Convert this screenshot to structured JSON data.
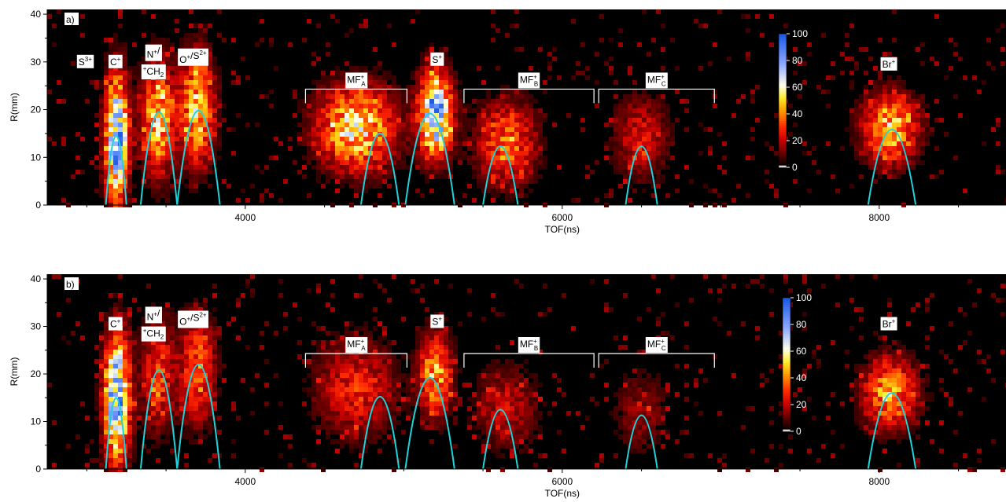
{
  "chart_data": [
    {
      "type": "heatmap",
      "panel_label": "a)",
      "xlabel": "TOF(ns)",
      "ylabel": "R(mm)",
      "xlim": [
        2750,
        8800
      ],
      "ylim": [
        0,
        41
      ],
      "x_ticks": [
        4000,
        6000,
        8000
      ],
      "y_ticks": [
        0,
        10,
        20,
        30,
        40
      ],
      "colorbar": {
        "min": 0,
        "max": 100,
        "ticks": [
          0,
          20,
          40,
          60,
          80,
          100
        ]
      },
      "blobs": [
        {
          "x": 3190,
          "sx": 50,
          "r": 14,
          "sr": 9,
          "peak": 95
        },
        {
          "x": 3450,
          "sx": 70,
          "r": 18,
          "sr": 8,
          "peak": 55
        },
        {
          "x": 3700,
          "sx": 75,
          "r": 20,
          "sr": 8,
          "peak": 55
        },
        {
          "x": 4700,
          "sx": 170,
          "r": 16,
          "sr": 6,
          "peak": 60
        },
        {
          "x": 5200,
          "sx": 70,
          "r": 19,
          "sr": 6,
          "peak": 92
        },
        {
          "x": 5650,
          "sx": 130,
          "r": 13,
          "sr": 6,
          "peak": 40
        },
        {
          "x": 6500,
          "sx": 120,
          "r": 14,
          "sr": 6,
          "peak": 25
        },
        {
          "x": 8070,
          "sx": 120,
          "r": 16,
          "sr": 5,
          "peak": 55
        }
      ],
      "arcs": [
        {
          "x0": 3120,
          "x1": 3250,
          "peak": 14.5
        },
        {
          "x0": 3340,
          "x1": 3570,
          "peak": 19.5
        },
        {
          "x0": 3570,
          "x1": 3840,
          "peak": 19.8
        },
        {
          "x0": 4730,
          "x1": 4970,
          "peak": 15
        },
        {
          "x0": 5010,
          "x1": 5320,
          "peak": 19.2
        },
        {
          "x0": 5500,
          "x1": 5720,
          "peak": 12.3
        },
        {
          "x0": 6400,
          "x1": 6600,
          "peak": 12.3
        },
        {
          "x0": 7930,
          "x1": 8230,
          "peak": 15.8
        }
      ],
      "ion_labels": [
        {
          "x": 2990,
          "y": 30,
          "text": "S",
          "sup": "3+",
          "sub": ""
        },
        {
          "x": 3180,
          "y": 30,
          "text": "C",
          "sup": "+",
          "sub": ""
        },
        {
          "x": 3420,
          "y": 31.5,
          "text": "N",
          "sup": "+",
          "sub": "",
          "suffix": "/"
        },
        {
          "x": 3420,
          "y": 28,
          "text": "CH",
          "sup": "",
          "sub": "2",
          "pre_sup": "+"
        },
        {
          "x": 3670,
          "y": 30.5,
          "text": "O",
          "sup": "+",
          "sub": "",
          "suffix": "/S",
          "suffix_sup": "2+"
        },
        {
          "x": 5210,
          "y": 30.5,
          "text": "S",
          "sup": "+",
          "sub": ""
        },
        {
          "x": 8060,
          "y": 29.5,
          "text": "Br",
          "sup": "+",
          "sub": ""
        }
      ],
      "brackets": [
        {
          "x0": 4380,
          "x1": 5020,
          "y": 24.3,
          "label": "MF",
          "sup": "+",
          "sub": "A"
        },
        {
          "x0": 5380,
          "x1": 6200,
          "y": 24.3,
          "label": "MF",
          "sup": "+",
          "sub": "B"
        },
        {
          "x0": 6230,
          "x1": 6960,
          "y": 24.3,
          "label": "MF",
          "sup": "+",
          "sub": "C"
        }
      ]
    },
    {
      "type": "heatmap",
      "panel_label": "b)",
      "xlabel": "TOF(ns)",
      "ylabel": "R(mm)",
      "xlim": [
        2750,
        8800
      ],
      "ylim": [
        0,
        41
      ],
      "x_ticks": [
        4000,
        6000,
        8000
      ],
      "y_ticks": [
        0,
        10,
        20,
        30,
        40
      ],
      "colorbar": {
        "min": 0,
        "max": 100,
        "ticks": [
          0,
          20,
          40,
          60,
          80,
          100
        ]
      },
      "blobs": [
        {
          "x": 3190,
          "sx": 55,
          "r": 15,
          "sr": 9,
          "peak": 95
        },
        {
          "x": 3450,
          "sx": 70,
          "r": 20,
          "sr": 8,
          "peak": 35
        },
        {
          "x": 3700,
          "sx": 75,
          "r": 21,
          "sr": 8,
          "peak": 40
        },
        {
          "x": 4700,
          "sx": 170,
          "r": 17,
          "sr": 7,
          "peak": 30
        },
        {
          "x": 5200,
          "sx": 70,
          "r": 20,
          "sr": 6,
          "peak": 50
        },
        {
          "x": 5650,
          "sx": 140,
          "r": 13,
          "sr": 6,
          "peak": 22
        },
        {
          "x": 6500,
          "sx": 120,
          "r": 12,
          "sr": 6,
          "peak": 15
        },
        {
          "x": 8070,
          "sx": 120,
          "r": 16,
          "sr": 5,
          "peak": 48
        }
      ],
      "arcs": [
        {
          "x0": 3120,
          "x1": 3250,
          "peak": 15
        },
        {
          "x0": 3340,
          "x1": 3570,
          "peak": 20.8
        },
        {
          "x0": 3570,
          "x1": 3840,
          "peak": 22
        },
        {
          "x0": 4730,
          "x1": 4970,
          "peak": 15.2
        },
        {
          "x0": 5010,
          "x1": 5320,
          "peak": 19.2
        },
        {
          "x0": 5500,
          "x1": 5720,
          "peak": 12.5
        },
        {
          "x0": 6400,
          "x1": 6600,
          "peak": 11.3
        },
        {
          "x0": 7930,
          "x1": 8230,
          "peak": 16
        }
      ],
      "ion_labels": [
        {
          "x": 3180,
          "y": 30.5,
          "text": "C",
          "sup": "+",
          "sub": ""
        },
        {
          "x": 3420,
          "y": 32,
          "text": "N",
          "sup": "+",
          "sub": "",
          "suffix": "/"
        },
        {
          "x": 3420,
          "y": 28.5,
          "text": "CH",
          "sup": "",
          "sub": "2",
          "pre_sup": "+"
        },
        {
          "x": 3670,
          "y": 31,
          "text": "O",
          "sup": "+",
          "sub": "",
          "suffix": "/S",
          "suffix_sup": "2+"
        },
        {
          "x": 5210,
          "y": 31,
          "text": "S",
          "sup": "+",
          "sub": ""
        },
        {
          "x": 8060,
          "y": 30.5,
          "text": "Br",
          "sup": "+",
          "sub": ""
        }
      ],
      "brackets": [
        {
          "x0": 4380,
          "x1": 5020,
          "y": 24.3,
          "label": "MF",
          "sup": "+",
          "sub": "A"
        },
        {
          "x0": 5380,
          "x1": 6200,
          "y": 24.3,
          "label": "MF",
          "sup": "+",
          "sub": "B"
        },
        {
          "x0": 6230,
          "x1": 6960,
          "y": 24.3,
          "label": "MF",
          "sup": "+",
          "sub": "C"
        }
      ]
    }
  ],
  "colors": {
    "arc": "#1fd3d8",
    "background": "#000000"
  }
}
